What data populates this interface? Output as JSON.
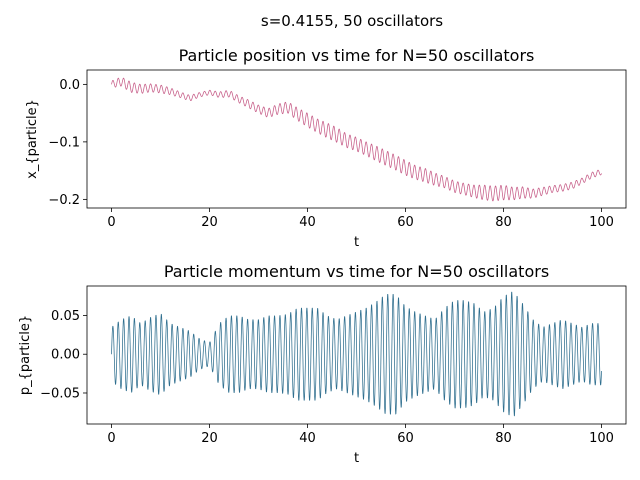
{
  "figure": {
    "suptitle": "s=0.4155, 50 oscillators"
  },
  "chart_data": [
    {
      "type": "line",
      "title": "Particle position vs time for N=50 oscillators",
      "xlabel": "t",
      "ylabel": "x_{particle}",
      "xlim": [
        -5,
        105
      ],
      "ylim": [
        -0.215,
        0.025
      ],
      "xticks": [
        0,
        20,
        40,
        60,
        80,
        100
      ],
      "xtick_labels": [
        "0",
        "20",
        "40",
        "60",
        "80",
        "100"
      ],
      "yticks": [
        0.0,
        -0.1,
        -0.2
      ],
      "ytick_labels": [
        "0.0",
        "−0.1",
        "−0.2"
      ],
      "grid": false,
      "series": [
        {
          "color": "#c65c87",
          "x": [
            0,
            2,
            4,
            6,
            8,
            10,
            12,
            14,
            16,
            18,
            20,
            22,
            24,
            26,
            28,
            30,
            32,
            34,
            36,
            38,
            40,
            42,
            44,
            46,
            48,
            50,
            52,
            54,
            56,
            58,
            60,
            62,
            64,
            66,
            68,
            70,
            72,
            74,
            76,
            78,
            80,
            82,
            84,
            86,
            88,
            90,
            92,
            94,
            96,
            98,
            100
          ],
          "y": [
            0.0,
            0.005,
            -0.005,
            -0.008,
            -0.006,
            -0.008,
            -0.012,
            -0.018,
            -0.024,
            -0.018,
            -0.014,
            -0.018,
            -0.016,
            -0.026,
            -0.034,
            -0.043,
            -0.05,
            -0.043,
            -0.04,
            -0.052,
            -0.062,
            -0.072,
            -0.08,
            -0.088,
            -0.098,
            -0.104,
            -0.112,
            -0.12,
            -0.128,
            -0.136,
            -0.145,
            -0.153,
            -0.158,
            -0.165,
            -0.17,
            -0.178,
            -0.182,
            -0.186,
            -0.188,
            -0.19,
            -0.188,
            -0.19,
            -0.188,
            -0.19,
            -0.186,
            -0.182,
            -0.18,
            -0.176,
            -0.168,
            -0.158,
            -0.152
          ],
          "ripple_amplitude": [
            0.006,
            0.008,
            0.009,
            0.008,
            0.007,
            0.007,
            0.006,
            0.005,
            0.005,
            0.004,
            0.004,
            0.005,
            0.006,
            0.006,
            0.007,
            0.007,
            0.008,
            0.009,
            0.01,
            0.011,
            0.012,
            0.012,
            0.013,
            0.013,
            0.012,
            0.012,
            0.012,
            0.013,
            0.013,
            0.013,
            0.013,
            0.012,
            0.012,
            0.011,
            0.01,
            0.01,
            0.01,
            0.011,
            0.013,
            0.013,
            0.013,
            0.011,
            0.01,
            0.008,
            0.007,
            0.006,
            0.006,
            0.006,
            0.005,
            0.005,
            0.005
          ],
          "ripple_period": 1.1
        }
      ]
    },
    {
      "type": "line",
      "title": "Particle momentum vs time for N=50 oscillators",
      "xlabel": "t",
      "ylabel": "p_{particle}",
      "xlim": [
        -5,
        105
      ],
      "ylim": [
        -0.09,
        0.088
      ],
      "xticks": [
        0,
        20,
        40,
        60,
        80,
        100
      ],
      "xtick_labels": [
        "0",
        "20",
        "40",
        "60",
        "80",
        "100"
      ],
      "yticks": [
        0.05,
        0.0,
        -0.05
      ],
      "ytick_labels": [
        "0.05",
        "0.00",
        "−0.05"
      ],
      "grid": false,
      "series": [
        {
          "color": "#2e6e8e",
          "x": [
            0,
            2,
            4,
            6,
            8,
            10,
            12,
            14,
            16,
            18,
            20,
            22,
            24,
            26,
            28,
            30,
            32,
            34,
            36,
            38,
            40,
            42,
            44,
            46,
            48,
            50,
            52,
            54,
            56,
            58,
            60,
            62,
            64,
            66,
            68,
            70,
            72,
            74,
            76,
            78,
            80,
            82,
            84,
            86,
            88,
            90,
            92,
            94,
            96,
            98,
            100
          ],
          "envelope": [
            0.035,
            0.045,
            0.05,
            0.04,
            0.048,
            0.053,
            0.04,
            0.035,
            0.03,
            0.02,
            0.015,
            0.04,
            0.05,
            0.05,
            0.045,
            0.045,
            0.05,
            0.05,
            0.052,
            0.06,
            0.06,
            0.06,
            0.05,
            0.045,
            0.05,
            0.055,
            0.06,
            0.068,
            0.078,
            0.078,
            0.062,
            0.055,
            0.05,
            0.045,
            0.06,
            0.07,
            0.07,
            0.066,
            0.055,
            0.06,
            0.075,
            0.082,
            0.065,
            0.045,
            0.035,
            0.04,
            0.045,
            0.04,
            0.035,
            0.04,
            0.04
          ],
          "period": 1.1
        }
      ]
    }
  ]
}
